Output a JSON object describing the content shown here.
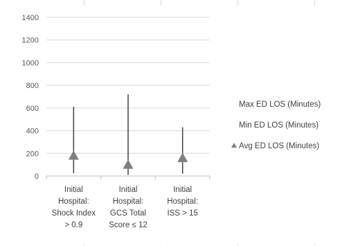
{
  "chart_data": {
    "type": "stock-high-low",
    "title": "",
    "xlabel": "",
    "ylabel": "",
    "ylim": [
      0,
      1400
    ],
    "yticks": [
      0,
      200,
      400,
      600,
      800,
      1000,
      1200,
      1400
    ],
    "grid": "horizontal",
    "legend_position": "right",
    "categories": [
      [
        "Initial",
        "Hospital:",
        "Shock Index",
        "> 0.9"
      ],
      [
        "Initial",
        "Hospital:",
        "GCS Total",
        "Score ≤ 12"
      ],
      [
        "Initial",
        "Hospital:",
        "ISS > 15"
      ]
    ],
    "series": [
      {
        "name": "Max ED LOS (Minutes)",
        "values": [
          610,
          720,
          430
        ],
        "marker": "none"
      },
      {
        "name": "Min ED LOS (Minutes)",
        "values": [
          25,
          10,
          20
        ],
        "marker": "none"
      },
      {
        "name": "Avg ED LOS (Minutes)",
        "values": [
          180,
          100,
          160
        ],
        "marker": "triangle"
      }
    ],
    "colors": {
      "axis": "#bfbfbf",
      "grid": "#d9d9d9",
      "line": "#404040",
      "marker": "#7f7f7f",
      "text": "#595959"
    }
  }
}
